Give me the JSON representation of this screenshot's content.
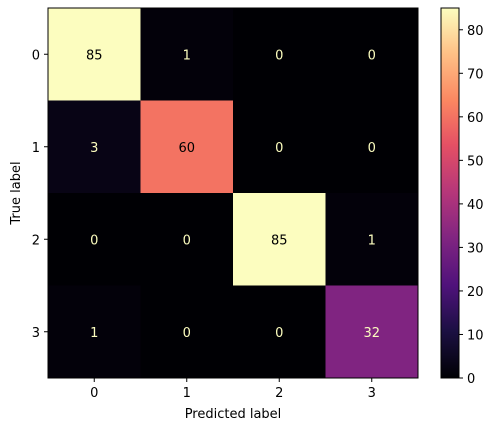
{
  "chart_data": {
    "type": "heatmap",
    "title": "",
    "xlabel": "Predicted label",
    "ylabel": "True label",
    "x_tick_labels": [
      "0",
      "1",
      "2",
      "3"
    ],
    "y_tick_labels": [
      "0",
      "1",
      "2",
      "3"
    ],
    "matrix": [
      [
        85,
        1,
        0,
        0
      ],
      [
        3,
        60,
        0,
        0
      ],
      [
        0,
        0,
        85,
        1
      ],
      [
        1,
        0,
        0,
        32
      ]
    ],
    "colormap": "magma",
    "color_range": [
      0,
      85
    ],
    "colorbar_ticks": [
      0,
      10,
      20,
      30,
      40,
      50,
      60,
      70,
      80
    ],
    "colorbar_tick_labels": [
      "0",
      "10",
      "20",
      "30",
      "40",
      "50",
      "60",
      "70",
      "80"
    ],
    "text_color_on_dark": "#fcfdbf",
    "text_color_on_light": "#000000"
  }
}
